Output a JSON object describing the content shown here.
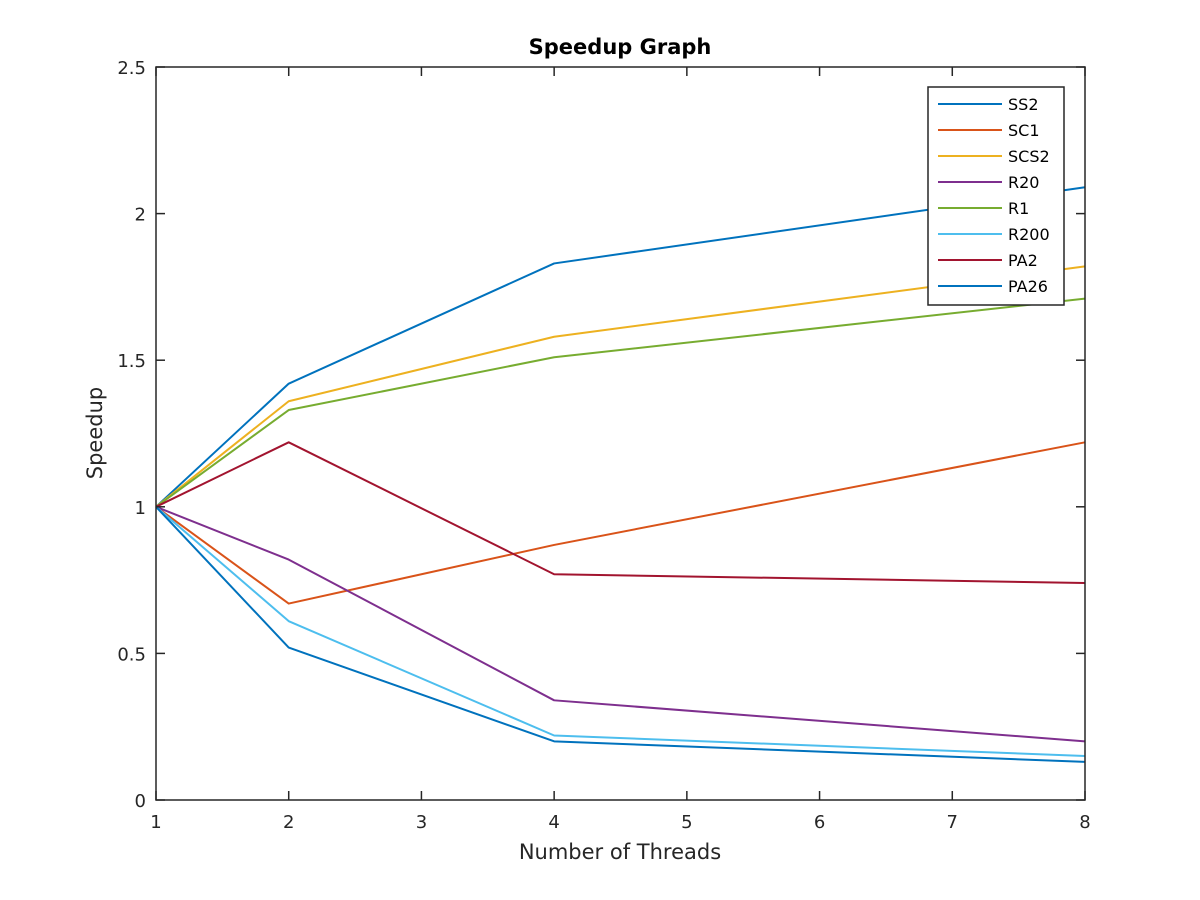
{
  "chart_data": {
    "type": "line",
    "title": "Speedup Graph",
    "xlabel": "Number of Threads",
    "ylabel": "Speedup",
    "xlim": [
      1,
      8
    ],
    "ylim": [
      0,
      2.5
    ],
    "xticks": [
      1,
      2,
      3,
      4,
      5,
      6,
      7,
      8
    ],
    "yticks": [
      0,
      0.5,
      1,
      1.5,
      2,
      2.5
    ],
    "xtick_labels": [
      "1",
      "2",
      "3",
      "4",
      "5",
      "6",
      "7",
      "8"
    ],
    "ytick_labels": [
      "0",
      "0.5",
      "1",
      "1.5",
      "2",
      "2.5"
    ],
    "x": [
      1,
      2,
      4,
      8
    ],
    "grid": false,
    "legend_position": "top-right",
    "series": [
      {
        "name": "SS2",
        "color": "#0072BD",
        "values": [
          1,
          1.42,
          1.83,
          2.09
        ]
      },
      {
        "name": "SC1",
        "color": "#D95319",
        "values": [
          1,
          0.67,
          0.87,
          1.22
        ]
      },
      {
        "name": "SCS2",
        "color": "#EDB120",
        "values": [
          1,
          1.36,
          1.58,
          1.82
        ]
      },
      {
        "name": "R20",
        "color": "#7E2F8E",
        "values": [
          1,
          0.82,
          0.34,
          0.2
        ]
      },
      {
        "name": "R1",
        "color": "#77AC30",
        "values": [
          1,
          1.33,
          1.51,
          1.71
        ]
      },
      {
        "name": "R200",
        "color": "#4DBEEE",
        "values": [
          1,
          0.61,
          0.22,
          0.15
        ]
      },
      {
        "name": "PA2",
        "color": "#A2142F",
        "values": [
          1,
          1.22,
          0.77,
          0.74
        ]
      },
      {
        "name": "PA26",
        "color": "#0072BD",
        "values": [
          1,
          0.52,
          0.2,
          0.13
        ]
      }
    ]
  }
}
